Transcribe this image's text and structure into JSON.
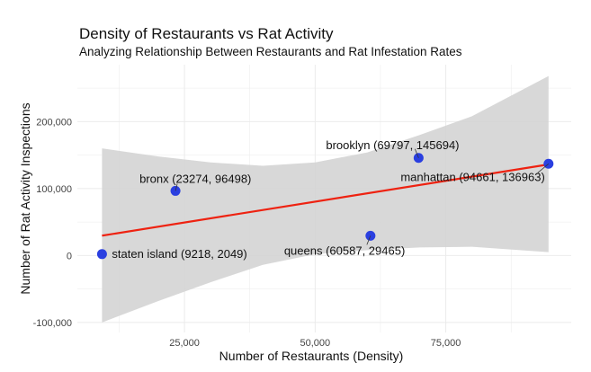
{
  "chart_data": {
    "type": "scatter",
    "title": "Density of Restaurants vs Rat Activity",
    "subtitle": "Analyzing Relationship Between Restaurants and Rat Infestation Rates",
    "xlabel": "Number of Restaurants (Density)",
    "ylabel": "Number of Rat Activity Inspections",
    "xlim": [
      4500,
      99000
    ],
    "ylim": [
      -115000,
      285000
    ],
    "x_ticks": [
      25000,
      50000,
      75000
    ],
    "x_tick_labels": [
      "25,000",
      "50,000",
      "75,000"
    ],
    "y_ticks": [
      -100000,
      0,
      100000,
      200000
    ],
    "y_tick_labels": [
      "-100,000",
      "0",
      "100,000",
      "200,000"
    ],
    "grid": true,
    "legend": "none",
    "colors": {
      "points": "#2a3fe0",
      "fit_line": "#ee2211",
      "confidence_band": "#d4d4d4",
      "grid": "#ebebeb"
    },
    "points": [
      {
        "name": "staten island",
        "x": 9218,
        "y": 2049,
        "label": "staten island (9218, 2049)"
      },
      {
        "name": "bronx",
        "x": 23274,
        "y": 96498,
        "label": "bronx (23274, 96498)"
      },
      {
        "name": "queens",
        "x": 60587,
        "y": 29465,
        "label": "queens (60587, 29465)"
      },
      {
        "name": "brooklyn",
        "x": 69797,
        "y": 145694,
        "label": "brooklyn (69797, 145694)"
      },
      {
        "name": "manhattan",
        "x": 94661,
        "y": 136963,
        "label": "manhattan (94661, 136963)"
      }
    ],
    "fit_line": {
      "type": "linear",
      "x": [
        9218,
        94661
      ],
      "y": [
        29600,
        136000
      ]
    },
    "confidence_band": {
      "x": [
        9218,
        20000,
        30000,
        40000,
        50000,
        60000,
        70000,
        80000,
        94661
      ],
      "upper": [
        160000,
        148000,
        139000,
        134000,
        139000,
        154000,
        180000,
        208000,
        268000
      ],
      "lower": [
        -100000,
        -68000,
        -40000,
        -14000,
        2000,
        8000,
        12000,
        13000,
        5000
      ]
    }
  }
}
